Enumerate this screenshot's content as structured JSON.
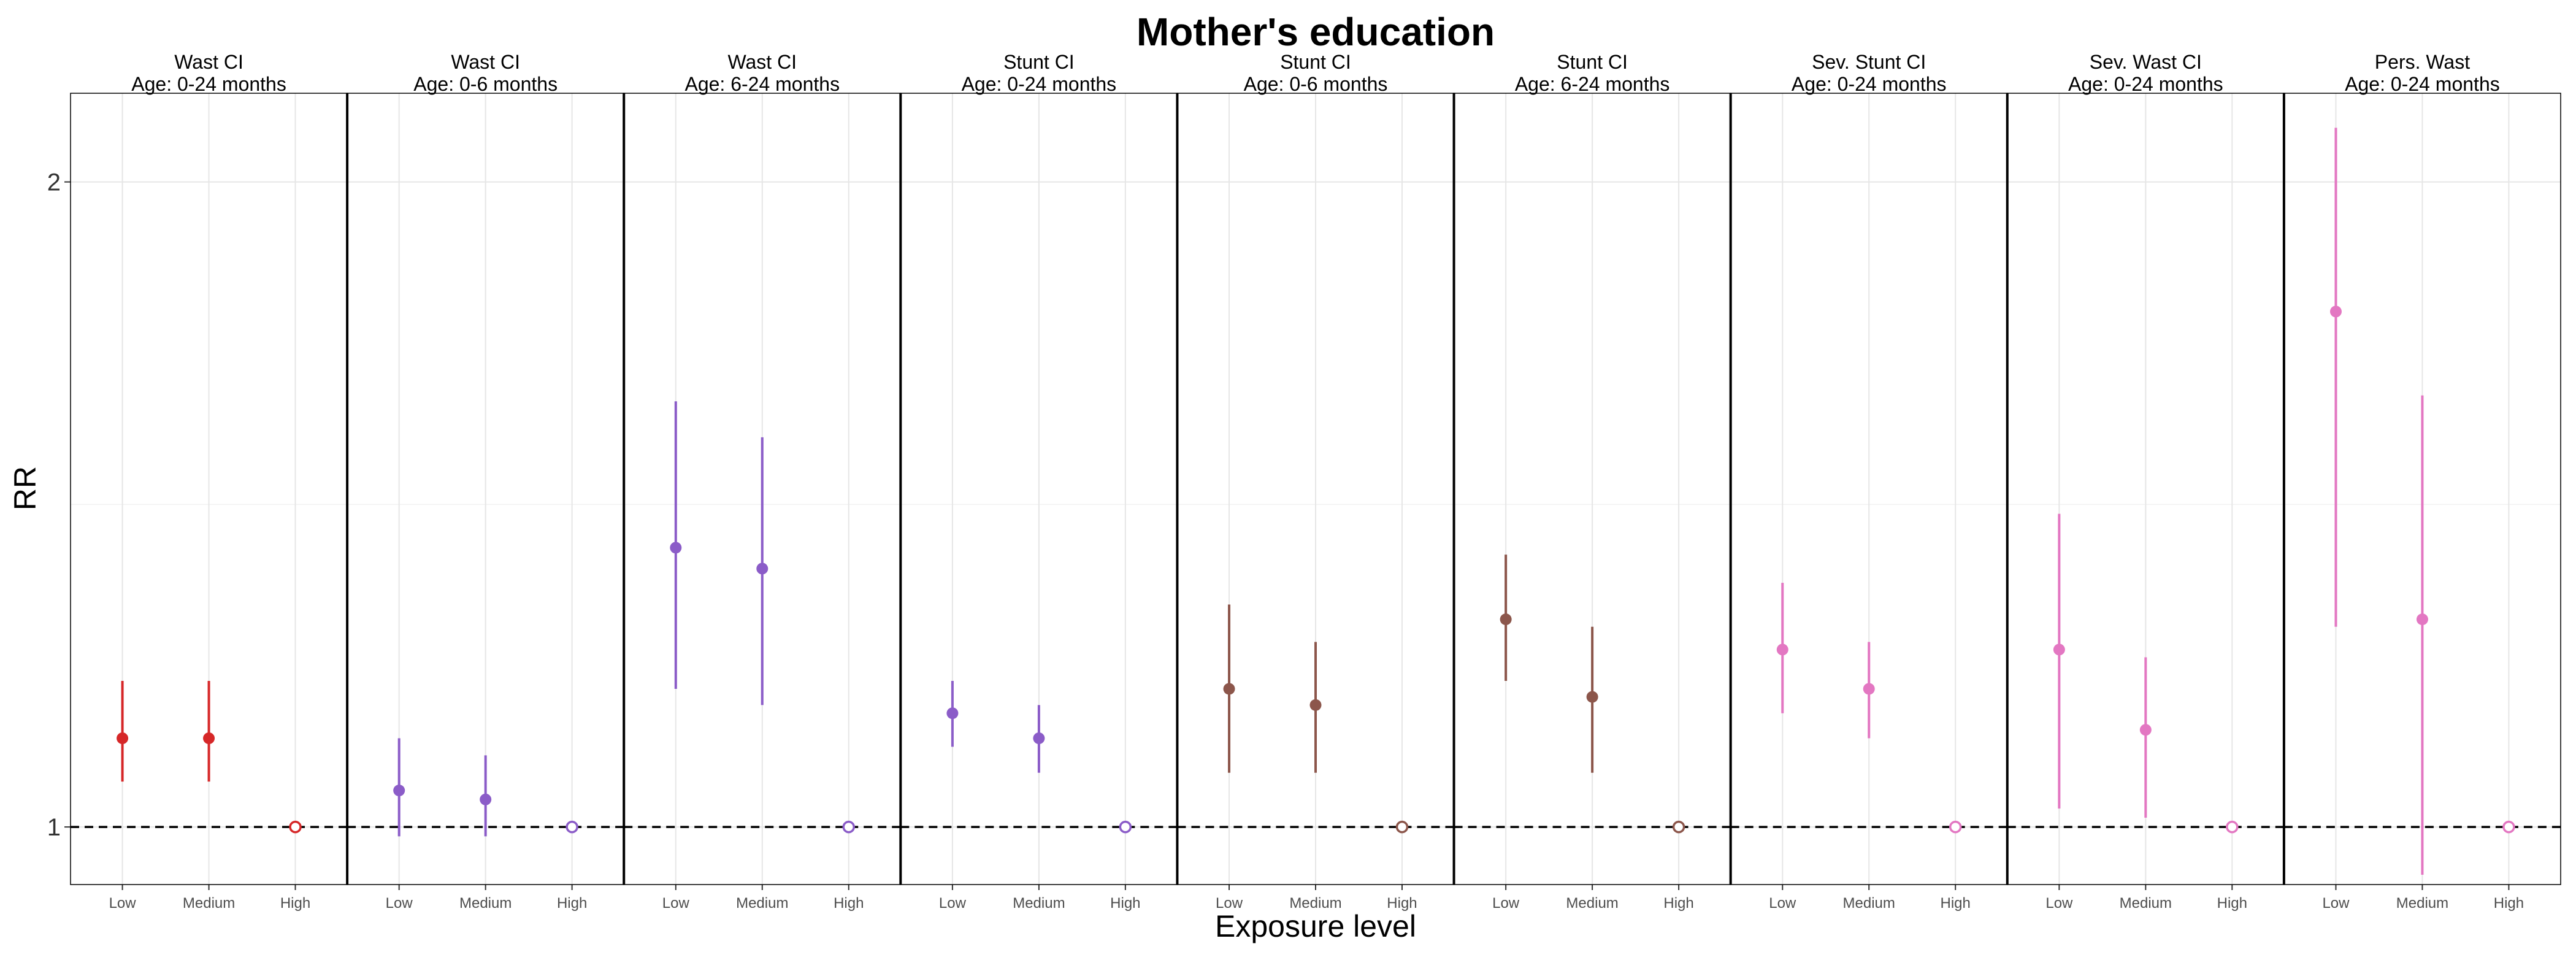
{
  "chart_data": {
    "type": "scatter",
    "title": "Mother's education",
    "xlabel": "Exposure level",
    "ylabel": "RR",
    "y_scale": "log",
    "ylim": [
      0.94,
      2.2
    ],
    "yticks": [
      1,
      2
    ],
    "ytick_labels": [
      "1",
      "2"
    ],
    "reference_line": 1,
    "grid": true,
    "categories": [
      "Low",
      "Medium",
      "High"
    ],
    "panels": [
      {
        "title": [
          "Wast CI",
          "Age: 0-24 months"
        ],
        "color": "#d62728",
        "points": [
          {
            "x": "Low",
            "rr": 1.1,
            "lower": 1.05,
            "upper": 1.17,
            "ref": false
          },
          {
            "x": "Medium",
            "rr": 1.1,
            "lower": 1.05,
            "upper": 1.17,
            "ref": false
          },
          {
            "x": "High",
            "rr": 1.0,
            "lower": 1.0,
            "upper": 1.0,
            "ref": true
          }
        ]
      },
      {
        "title": [
          "Wast CI",
          "Age: 0-6 months"
        ],
        "color": "#8b5cc8",
        "points": [
          {
            "x": "Low",
            "rr": 1.04,
            "lower": 0.99,
            "upper": 1.1,
            "ref": false
          },
          {
            "x": "Medium",
            "rr": 1.03,
            "lower": 0.99,
            "upper": 1.08,
            "ref": false
          },
          {
            "x": "High",
            "rr": 1.0,
            "lower": 1.0,
            "upper": 1.0,
            "ref": true
          }
        ]
      },
      {
        "title": [
          "Wast CI",
          "Age: 6-24 months"
        ],
        "color": "#8b5cc8",
        "points": [
          {
            "x": "Low",
            "rr": 1.35,
            "lower": 1.16,
            "upper": 1.58,
            "ref": false
          },
          {
            "x": "Medium",
            "rr": 1.32,
            "lower": 1.14,
            "upper": 1.52,
            "ref": false
          },
          {
            "x": "High",
            "rr": 1.0,
            "lower": 1.0,
            "upper": 1.0,
            "ref": true
          }
        ]
      },
      {
        "title": [
          "Stunt CI",
          "Age: 0-24 months"
        ],
        "color": "#8b5cc8",
        "points": [
          {
            "x": "Low",
            "rr": 1.13,
            "lower": 1.09,
            "upper": 1.17,
            "ref": false
          },
          {
            "x": "Medium",
            "rr": 1.1,
            "lower": 1.06,
            "upper": 1.14,
            "ref": false
          },
          {
            "x": "High",
            "rr": 1.0,
            "lower": 1.0,
            "upper": 1.0,
            "ref": true
          }
        ]
      },
      {
        "title": [
          "Stunt CI",
          "Age: 0-6 months"
        ],
        "color": "#8c564b",
        "points": [
          {
            "x": "Low",
            "rr": 1.16,
            "lower": 1.06,
            "upper": 1.27,
            "ref": false
          },
          {
            "x": "Medium",
            "rr": 1.14,
            "lower": 1.06,
            "upper": 1.22,
            "ref": false
          },
          {
            "x": "High",
            "rr": 1.0,
            "lower": 1.0,
            "upper": 1.0,
            "ref": true
          }
        ]
      },
      {
        "title": [
          "Stunt CI",
          "Age: 6-24 months"
        ],
        "color": "#8c564b",
        "points": [
          {
            "x": "Low",
            "rr": 1.25,
            "lower": 1.17,
            "upper": 1.34,
            "ref": false
          },
          {
            "x": "Medium",
            "rr": 1.15,
            "lower": 1.06,
            "upper": 1.24,
            "ref": false
          },
          {
            "x": "High",
            "rr": 1.0,
            "lower": 1.0,
            "upper": 1.0,
            "ref": true
          }
        ]
      },
      {
        "title": [
          "Sev. Stunt CI",
          "Age: 0-24 months"
        ],
        "color": "#e377c2",
        "points": [
          {
            "x": "Low",
            "rr": 1.21,
            "lower": 1.13,
            "upper": 1.3,
            "ref": false
          },
          {
            "x": "Medium",
            "rr": 1.16,
            "lower": 1.1,
            "upper": 1.22,
            "ref": false
          },
          {
            "x": "High",
            "rr": 1.0,
            "lower": 1.0,
            "upper": 1.0,
            "ref": true
          }
        ]
      },
      {
        "title": [
          "Sev. Wast CI",
          "Age: 0-24 months"
        ],
        "color": "#e377c2",
        "points": [
          {
            "x": "Low",
            "rr": 1.21,
            "lower": 1.02,
            "upper": 1.4,
            "ref": false
          },
          {
            "x": "Medium",
            "rr": 1.11,
            "lower": 1.01,
            "upper": 1.2,
            "ref": false
          },
          {
            "x": "High",
            "rr": 1.0,
            "lower": 1.0,
            "upper": 1.0,
            "ref": true
          }
        ]
      },
      {
        "title": [
          "Pers. Wast",
          "Age: 0-24 months"
        ],
        "color": "#e377c2",
        "points": [
          {
            "x": "Low",
            "rr": 1.74,
            "lower": 1.24,
            "upper": 2.12,
            "ref": false
          },
          {
            "x": "Medium",
            "rr": 1.25,
            "lower": 0.95,
            "upper": 1.59,
            "ref": false
          },
          {
            "x": "High",
            "rr": 1.0,
            "lower": 1.0,
            "upper": 1.0,
            "ref": true
          }
        ]
      }
    ]
  }
}
